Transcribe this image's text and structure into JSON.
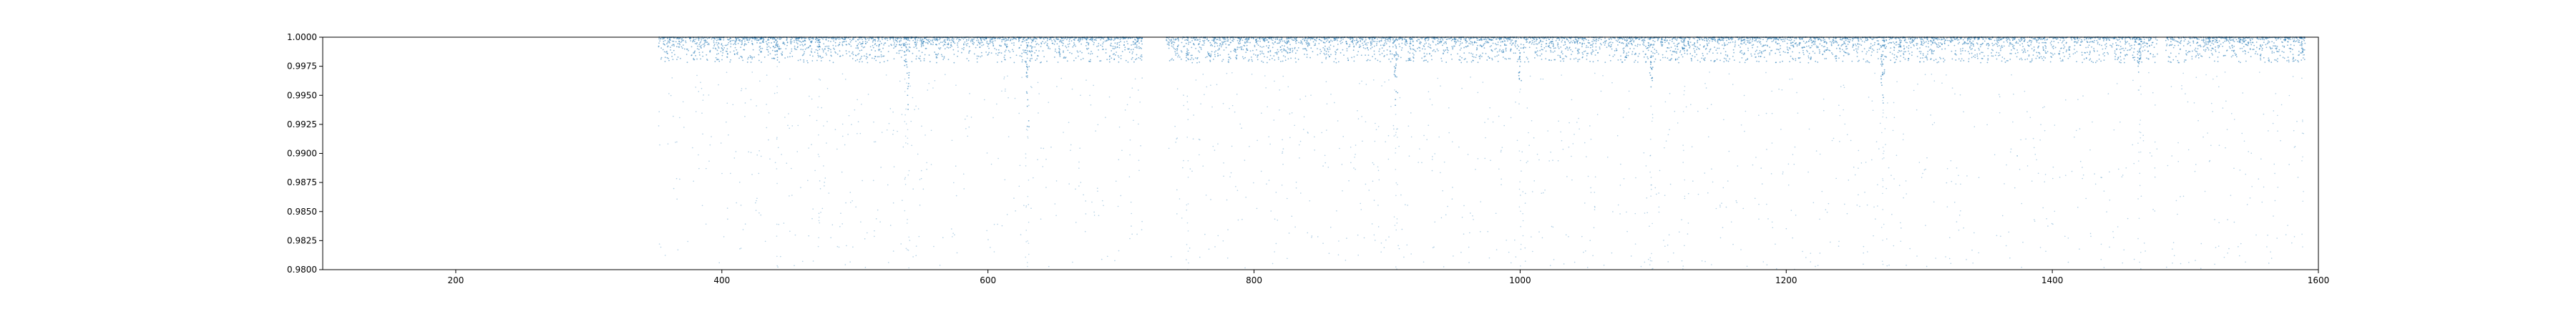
{
  "chart_data": {
    "type": "scatter",
    "title": "",
    "xlabel": "",
    "ylabel": "",
    "xlim": [
      100,
      1600
    ],
    "ylim": [
      0.98,
      1.0
    ],
    "grid": false,
    "legend": "none",
    "marker_color": "#1f77b4",
    "x_ticks": [
      200,
      400,
      600,
      800,
      1000,
      1200,
      1400,
      1600
    ],
    "x_tick_labels": [
      "200",
      "400",
      "600",
      "800",
      "1000",
      "1200",
      "1400",
      "1600"
    ],
    "y_ticks": [
      0.98,
      0.9825,
      0.985,
      0.9875,
      0.99,
      0.9925,
      0.995,
      0.9975,
      1.0
    ],
    "y_tick_labels": [
      "0.9800",
      "0.9825",
      "0.9850",
      "0.9875",
      "0.9900",
      "0.9925",
      "0.9950",
      "0.9975",
      "1.0000"
    ],
    "data_ranges": [
      [
        352,
        716
      ],
      [
        734,
        1479
      ],
      [
        1485,
        1590
      ]
    ],
    "dips": [
      {
        "x": 441,
        "y": 0.9979
      },
      {
        "x": 473,
        "y": 0.9982
      },
      {
        "x": 538,
        "y": 0.9975
      },
      {
        "x": 540,
        "y": 0.9935
      },
      {
        "x": 629,
        "y": 0.9965
      },
      {
        "x": 630,
        "y": 0.992
      },
      {
        "x": 750,
        "y": 0.998
      },
      {
        "x": 906,
        "y": 0.9962
      },
      {
        "x": 907,
        "y": 0.994
      },
      {
        "x": 1000,
        "y": 0.996
      },
      {
        "x": 1098,
        "y": 0.9965
      },
      {
        "x": 1099,
        "y": 0.995
      },
      {
        "x": 1123,
        "y": 0.9985
      },
      {
        "x": 1272,
        "y": 0.9955
      },
      {
        "x": 1273,
        "y": 0.994
      },
      {
        "x": 1465,
        "y": 0.9968
      },
      {
        "x": 1466,
        "y": 0.9975
      },
      {
        "x": 1588,
        "y": 0.9985
      }
    ]
  }
}
